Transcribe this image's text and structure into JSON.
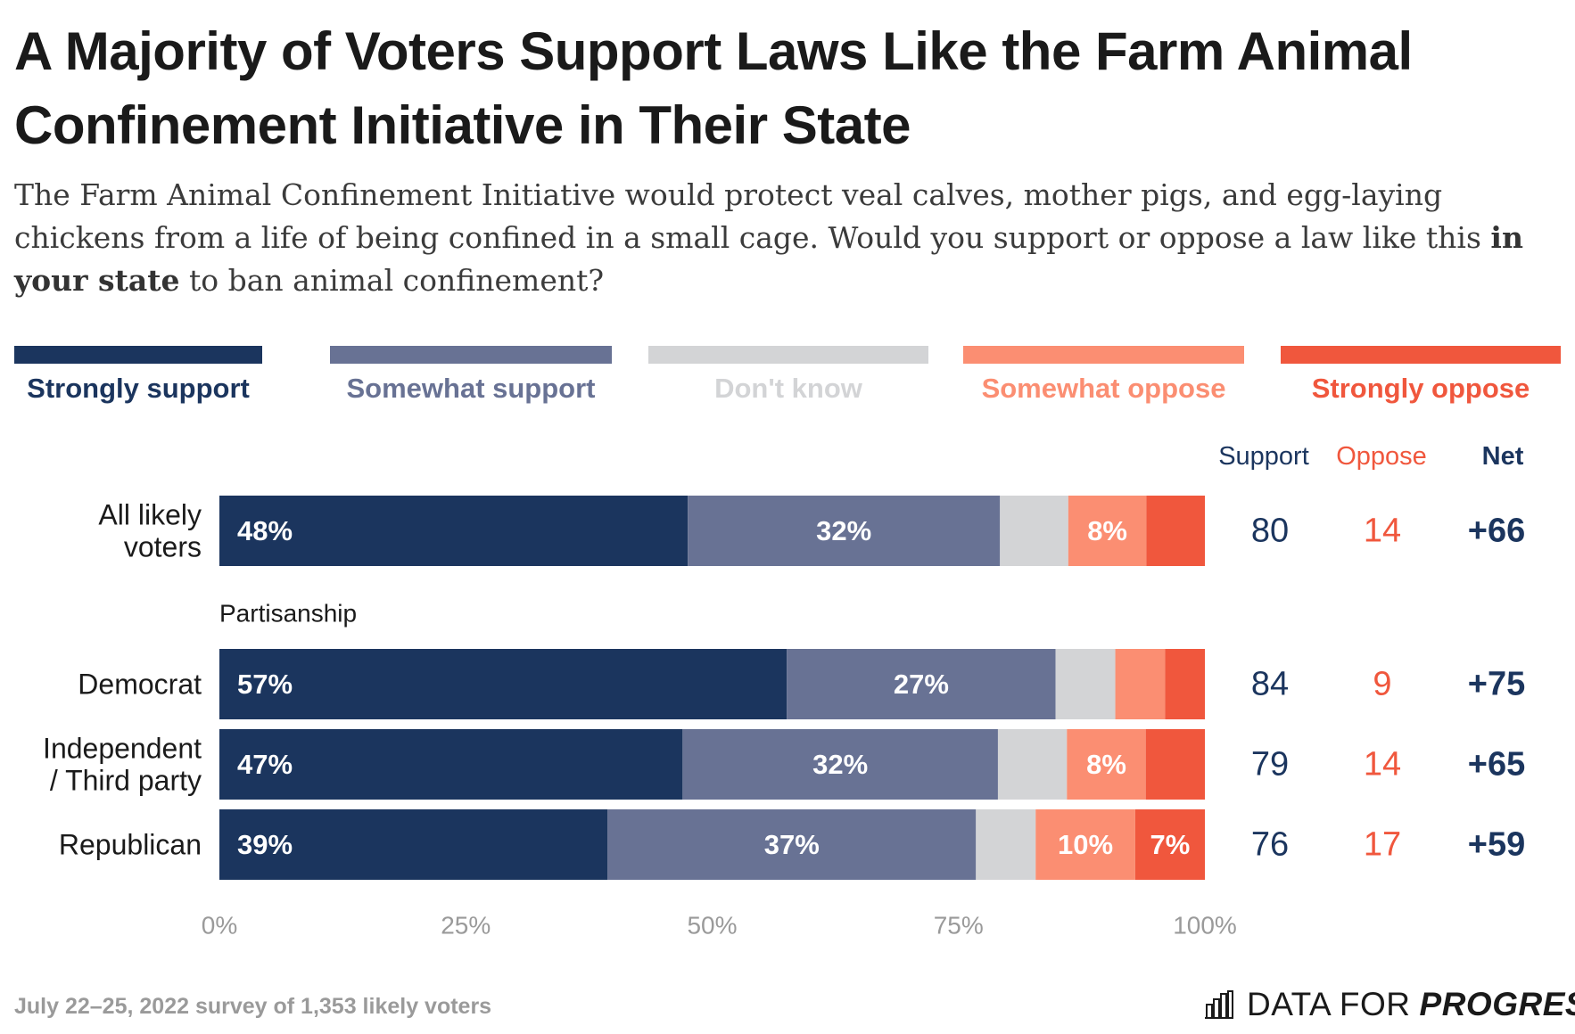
{
  "title": "A Majority of Voters Support Laws Like the Farm Animal Confinement Initiative in Their State",
  "subtitle": {
    "part1": "The Farm Animal Confinement Initiative would protect veal calves, mother pigs, and egg-laying chickens from a life of being confined in a small cage. Would you support or oppose a law like this ",
    "bold": "in your state",
    "part2": " to ban animal confinement?"
  },
  "legend": [
    {
      "label": "Strongly support",
      "color": "#1b355e"
    },
    {
      "label": "Somewhat support",
      "color": "#687294"
    },
    {
      "label": "Don't know",
      "color": "#d3d4d6"
    },
    {
      "label": "Somewhat oppose",
      "color": "#fb8e72"
    },
    {
      "label": "Strongly oppose",
      "color": "#f0573d"
    }
  ],
  "columns": {
    "support": {
      "label": "Support",
      "color": "#1b355e"
    },
    "oppose": {
      "label": "Oppose",
      "color": "#f0573d"
    },
    "net": {
      "label": "Net",
      "color": "#1b355e"
    }
  },
  "section_label": "Partisanship",
  "chart_data": {
    "type": "bar",
    "orientation": "horizontal",
    "stacked": true,
    "xlim": [
      0,
      100
    ],
    "x_ticks": [
      "0%",
      "25%",
      "50%",
      "75%",
      "100%"
    ],
    "grid": false,
    "legend_position": "top",
    "series_names": [
      "Strongly support",
      "Somewhat support",
      "Don't know",
      "Somewhat oppose",
      "Strongly oppose"
    ],
    "rows": [
      {
        "category": "All likely voters",
        "values": [
          48,
          32,
          7,
          8,
          6
        ],
        "labels": [
          "48%",
          "32%",
          "",
          "8%",
          ""
        ],
        "support": "80",
        "oppose": "14",
        "net": "+66"
      },
      {
        "category": "Democrat",
        "values": [
          57,
          27,
          6,
          5,
          4
        ],
        "labels": [
          "57%",
          "27%",
          "",
          "",
          ""
        ],
        "support": "84",
        "oppose": "9",
        "net": "+75"
      },
      {
        "category": "Independent / Third party",
        "values": [
          47,
          32,
          7,
          8,
          6
        ],
        "labels": [
          "47%",
          "32%",
          "",
          "8%",
          ""
        ],
        "support": "79",
        "oppose": "14",
        "net": "+65"
      },
      {
        "category": "Republican",
        "values": [
          39,
          37,
          6,
          10,
          7
        ],
        "labels": [
          "39%",
          "37%",
          "",
          "10%",
          "7%"
        ],
        "support": "76",
        "oppose": "17",
        "net": "+59"
      }
    ]
  },
  "footer": {
    "source": "July 22–25, 2022 survey of 1,353 likely voters",
    "brand_regular": "DATA FOR",
    "brand_bold": "PROGRESS"
  }
}
